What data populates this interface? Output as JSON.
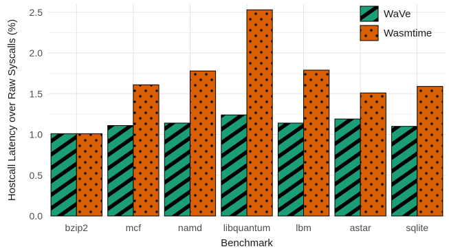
{
  "chart_data": {
    "type": "bar",
    "xlabel": "Benchmark",
    "ylabel": "Hostcall Latency over Raw Syscalls (%)",
    "categories": [
      "bzip2",
      "mcf",
      "namd",
      "libquantum",
      "lbm",
      "astar",
      "sqlite"
    ],
    "series": [
      {
        "name": "WaVe",
        "values": [
          1.01,
          1.11,
          1.14,
          1.24,
          1.14,
          1.19,
          1.1
        ],
        "color": "#1b9e77",
        "pattern": "stripes"
      },
      {
        "name": "Wasmtime",
        "values": [
          1.01,
          1.61,
          1.78,
          2.53,
          1.79,
          1.51,
          1.59
        ],
        "color": "#d95f02",
        "pattern": "dots"
      }
    ],
    "ylim": [
      0,
      2.6
    ],
    "yticks": [
      0.0,
      0.5,
      1.0,
      1.5,
      2.0,
      2.5
    ],
    "ytick_labels": [
      "0.0",
      "0.5",
      "1.0",
      "1.5",
      "2.0",
      "2.5"
    ],
    "grid": true,
    "legend_position": "top-right"
  }
}
